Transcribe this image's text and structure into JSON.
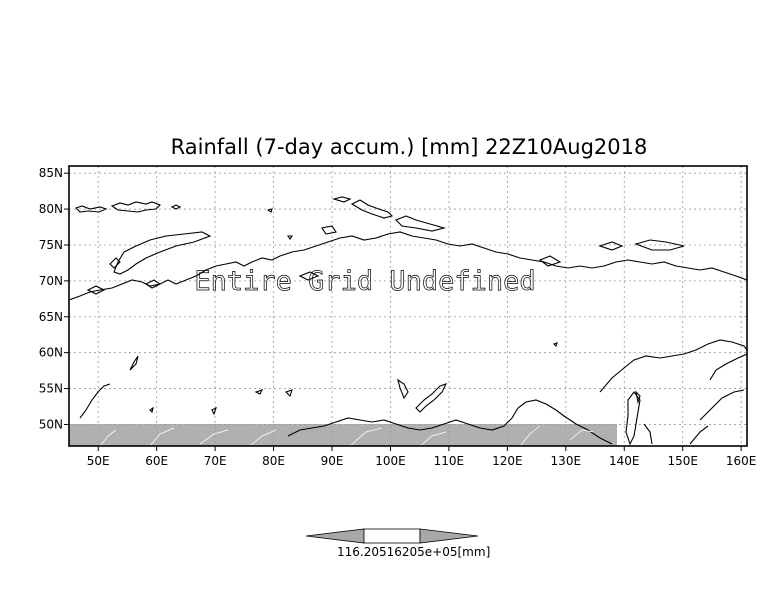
{
  "map": {
    "title": "Rainfall (7-day accum.) [mm] 22Z10Aug2018",
    "overlay_text": "Entire Grid Undefined",
    "lon_range": [
      45,
      161
    ],
    "lat_range": [
      47,
      86
    ],
    "lat_ticks": [
      {
        "value": 85,
        "label": "85N"
      },
      {
        "value": 80,
        "label": "80N"
      },
      {
        "value": 75,
        "label": "75N"
      },
      {
        "value": 70,
        "label": "70N"
      },
      {
        "value": 65,
        "label": "65N"
      },
      {
        "value": 60,
        "label": "60N"
      },
      {
        "value": 55,
        "label": "55N"
      },
      {
        "value": 50,
        "label": "50N"
      }
    ],
    "lon_ticks": [
      {
        "value": 50,
        "label": "50E"
      },
      {
        "value": 60,
        "label": "60E"
      },
      {
        "value": 70,
        "label": "70E"
      },
      {
        "value": 80,
        "label": "80E"
      },
      {
        "value": 90,
        "label": "90E"
      },
      {
        "value": 100,
        "label": "100E"
      },
      {
        "value": 110,
        "label": "110E"
      },
      {
        "value": 120,
        "label": "120E"
      },
      {
        "value": 130,
        "label": "130E"
      },
      {
        "value": 140,
        "label": "140E"
      },
      {
        "value": 150,
        "label": "150E"
      },
      {
        "value": 160,
        "label": "160E"
      }
    ],
    "shaded_band_lat": [
      47,
      50
    ],
    "shade_color": "#b0b0b0",
    "grid": "dotted"
  },
  "colorbar": {
    "label": "116.20516205e+05[mm]"
  }
}
